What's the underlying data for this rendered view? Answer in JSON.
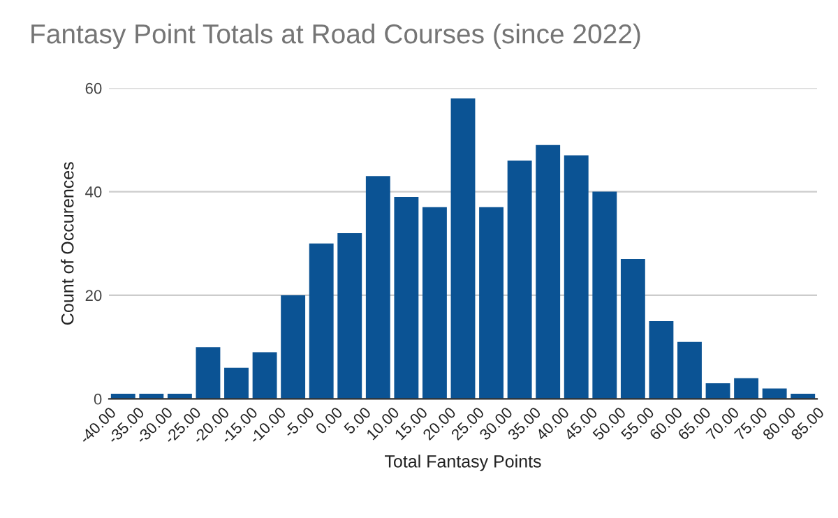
{
  "chart_data": {
    "type": "histogram",
    "title": "Fantasy Point Totals at Road Courses (since 2022)",
    "xlabel": "Total Fantasy Points",
    "ylabel": "Count of Occurences",
    "bins": [
      -40,
      -35,
      -30,
      -25,
      -20,
      -15,
      -10,
      -5,
      0,
      5,
      10,
      15,
      20,
      25,
      30,
      35,
      40,
      45,
      50,
      55,
      60,
      65,
      70,
      75,
      80,
      85
    ],
    "values": [
      1,
      1,
      1,
      10,
      6,
      9,
      20,
      30,
      32,
      43,
      39,
      37,
      58,
      37,
      46,
      49,
      47,
      40,
      27,
      15,
      11,
      3,
      4,
      2,
      1
    ],
    "color": "#0b5394",
    "xlim": [
      -40,
      85
    ],
    "ylim": [
      0,
      60
    ],
    "yticks": [
      0,
      20,
      40,
      60
    ],
    "xticks": [
      {
        "value": -40,
        "label": "-40.00"
      },
      {
        "value": -35,
        "label": "-35.00"
      },
      {
        "value": -30,
        "label": "-30.00"
      },
      {
        "value": -25,
        "label": "-25.00"
      },
      {
        "value": -20,
        "label": "-20.00"
      },
      {
        "value": -15,
        "label": "-15.00"
      },
      {
        "value": -10,
        "label": "-10.00"
      },
      {
        "value": -5,
        "label": "-5.00"
      },
      {
        "value": 0,
        "label": "0.00"
      },
      {
        "value": 5,
        "label": "5.00"
      },
      {
        "value": 10,
        "label": "10.00"
      },
      {
        "value": 15,
        "label": "15.00"
      },
      {
        "value": 20,
        "label": "20.00"
      },
      {
        "value": 25,
        "label": "25.00"
      },
      {
        "value": 30,
        "label": "30.00"
      },
      {
        "value": 35,
        "label": "35.00"
      },
      {
        "value": 40,
        "label": "40.00"
      },
      {
        "value": 45,
        "label": "45.00"
      },
      {
        "value": 50,
        "label": "50.00"
      },
      {
        "value": 55,
        "label": "55.00"
      },
      {
        "value": 60,
        "label": "60.00"
      },
      {
        "value": 65,
        "label": "65.00"
      },
      {
        "value": 70,
        "label": "70.00"
      },
      {
        "value": 75,
        "label": "75.00"
      },
      {
        "value": 80,
        "label": "80.00"
      },
      {
        "value": 85,
        "label": "85.00"
      }
    ],
    "grid": "y",
    "legend": false
  }
}
